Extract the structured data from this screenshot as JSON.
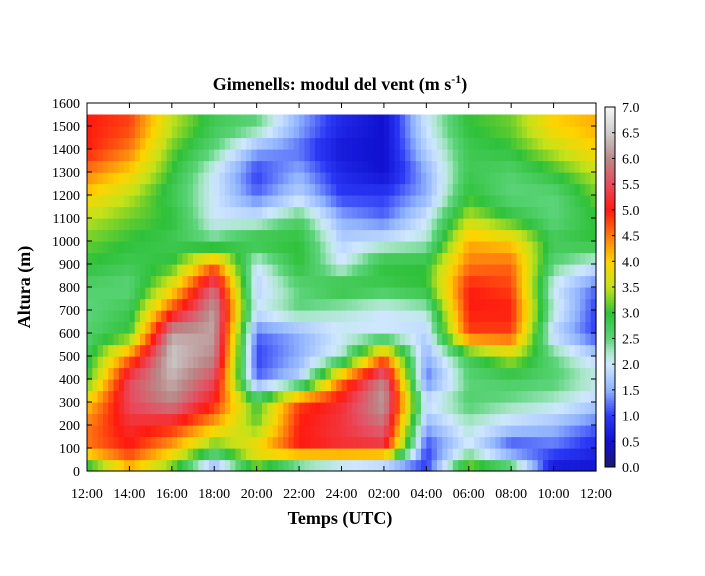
{
  "chart_data": {
    "type": "heatmap",
    "title": "Gimenells: modul del vent (m s",
    "title_sup": "-1",
    "title_close": ")",
    "xlabel": "Temps (UTC)",
    "ylabel": "Altura (m)",
    "x_ticks": [
      "12:00",
      "14:00",
      "16:00",
      "18:00",
      "20:00",
      "22:00",
      "24:00",
      "02:00",
      "04:00",
      "06:00",
      "08:00",
      "10:00",
      "12:00"
    ],
    "xlim_hours": [
      0,
      24
    ],
    "y_ticks": [
      "0",
      "100",
      "200",
      "300",
      "400",
      "500",
      "600",
      "700",
      "800",
      "900",
      "1000",
      "1100",
      "1200",
      "1300",
      "1400",
      "1500",
      "1600"
    ],
    "ylim": [
      0,
      1600
    ],
    "data_top": 1520,
    "colorbar": {
      "range": [
        0,
        7
      ],
      "ticks": [
        "0.0",
        "0.5",
        "1.0",
        "1.5",
        "2.0",
        "2.5",
        "3.0",
        "3.5",
        "4.0",
        "4.5",
        "5.0",
        "5.5",
        "6.0",
        "6.5",
        "7.0"
      ]
    },
    "heights_m": [
      0,
      100,
      200,
      300,
      400,
      500,
      600,
      700,
      800,
      900,
      1000,
      1100,
      1200,
      1300,
      1400,
      1500
    ],
    "times_h": [
      0,
      2,
      4,
      6,
      8,
      10,
      12,
      14,
      16,
      18,
      20,
      22,
      24
    ],
    "values": [
      [
        2.5,
        4.0,
        3.0,
        1.2,
        3.0,
        1.5,
        1.0,
        0.8,
        1.0,
        3.6,
        3.0,
        0.5,
        0.5
      ],
      [
        4.5,
        5.0,
        4.2,
        3.0,
        4.0,
        5.0,
        5.2,
        5.2,
        1.0,
        2.0,
        1.0,
        1.2,
        0.8
      ],
      [
        4.5,
        5.2,
        5.0,
        4.2,
        3.2,
        5.0,
        5.3,
        5.8,
        1.5,
        2.2,
        1.8,
        1.6,
        1.2
      ],
      [
        4.0,
        5.5,
        6.0,
        5.0,
        3.0,
        4.8,
        5.2,
        6.2,
        2.0,
        2.6,
        2.4,
        2.2,
        1.8
      ],
      [
        3.0,
        5.5,
        6.3,
        5.5,
        1.2,
        1.8,
        4.5,
        6.0,
        1.2,
        2.5,
        2.7,
        2.6,
        2.2
      ],
      [
        2.8,
        4.5,
        6.5,
        6.0,
        1.0,
        1.5,
        2.2,
        4.5,
        1.5,
        2.8,
        3.5,
        2.5,
        1.8
      ],
      [
        2.6,
        3.0,
        6.2,
        6.2,
        1.2,
        1.5,
        2.0,
        2.0,
        1.8,
        4.8,
        4.8,
        1.8,
        1.0
      ],
      [
        2.5,
        2.8,
        4.8,
        6.2,
        2.0,
        2.5,
        2.2,
        2.0,
        2.2,
        5.0,
        5.0,
        2.2,
        1.0
      ],
      [
        2.6,
        2.5,
        3.8,
        5.8,
        1.8,
        2.5,
        3.0,
        2.8,
        3.0,
        5.0,
        4.8,
        2.0,
        1.2
      ],
      [
        3.0,
        2.8,
        3.0,
        4.5,
        2.0,
        3.0,
        2.0,
        3.0,
        3.0,
        4.5,
        4.6,
        2.5,
        2.0
      ],
      [
        3.2,
        3.0,
        2.8,
        2.5,
        3.0,
        3.0,
        1.8,
        2.0,
        2.2,
        4.2,
        4.0,
        2.8,
        3.0
      ],
      [
        3.5,
        3.2,
        3.0,
        2.0,
        2.0,
        2.6,
        1.5,
        1.2,
        2.0,
        3.5,
        3.0,
        2.5,
        3.0
      ],
      [
        4.0,
        3.5,
        2.8,
        2.0,
        1.2,
        1.8,
        1.0,
        1.0,
        1.5,
        3.0,
        2.5,
        2.5,
        3.2
      ],
      [
        4.5,
        4.0,
        3.0,
        2.0,
        1.0,
        1.5,
        0.8,
        0.5,
        1.5,
        2.8,
        2.6,
        3.0,
        3.5
      ],
      [
        5.0,
        4.5,
        3.2,
        2.5,
        1.5,
        1.2,
        0.6,
        0.5,
        1.8,
        2.8,
        3.0,
        3.5,
        4.0
      ],
      [
        5.0,
        4.8,
        3.5,
        2.8,
        2.5,
        1.5,
        0.8,
        0.5,
        2.0,
        3.0,
        3.2,
        4.0,
        4.2
      ]
    ],
    "colormap": [
      [
        0.0,
        "#1a1a6e"
      ],
      [
        0.5,
        "#1010d0"
      ],
      [
        1.0,
        "#2a38f5"
      ],
      [
        1.5,
        "#8fb2ff"
      ],
      [
        2.0,
        "#cfe7ff"
      ],
      [
        2.25,
        "#a8e6c8"
      ],
      [
        2.5,
        "#5cd47a"
      ],
      [
        3.0,
        "#2fc13a"
      ],
      [
        3.5,
        "#c4e21a"
      ],
      [
        4.0,
        "#ffd400"
      ],
      [
        4.5,
        "#ff7a10"
      ],
      [
        5.0,
        "#ff1a10"
      ],
      [
        5.5,
        "#e84b5e"
      ],
      [
        6.0,
        "#b98888"
      ],
      [
        6.5,
        "#cccccc"
      ],
      [
        7.0,
        "#f5f5f5"
      ]
    ]
  }
}
